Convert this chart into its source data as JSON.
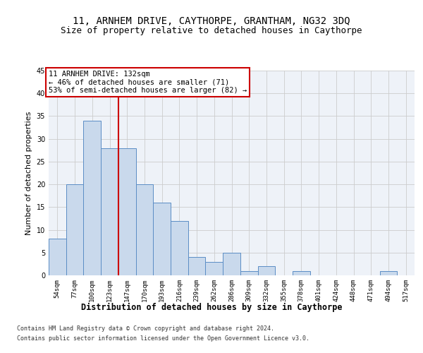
{
  "title": "11, ARNHEM DRIVE, CAYTHORPE, GRANTHAM, NG32 3DQ",
  "subtitle": "Size of property relative to detached houses in Caythorpe",
  "xlabel": "Distribution of detached houses by size in Caythorpe",
  "ylabel": "Number of detached properties",
  "bar_labels": [
    "54sqm",
    "77sqm",
    "100sqm",
    "123sqm",
    "147sqm",
    "170sqm",
    "193sqm",
    "216sqm",
    "239sqm",
    "262sqm",
    "286sqm",
    "309sqm",
    "332sqm",
    "355sqm",
    "378sqm",
    "401sqm",
    "424sqm",
    "448sqm",
    "471sqm",
    "494sqm",
    "517sqm"
  ],
  "bar_values": [
    8,
    20,
    34,
    28,
    28,
    20,
    16,
    12,
    4,
    3,
    5,
    1,
    2,
    0,
    1,
    0,
    0,
    0,
    0,
    1,
    0
  ],
  "bar_color": "#c9d9ec",
  "bar_edge_color": "#5b8dc5",
  "vline_x": 3.5,
  "vline_color": "#cc0000",
  "annotation_text": "11 ARNHEM DRIVE: 132sqm\n← 46% of detached houses are smaller (71)\n53% of semi-detached houses are larger (82) →",
  "annotation_box_color": "#ffffff",
  "annotation_box_edge": "#cc0000",
  "ylim": [
    0,
    45
  ],
  "yticks": [
    0,
    5,
    10,
    15,
    20,
    25,
    30,
    35,
    40,
    45
  ],
  "grid_color": "#cccccc",
  "background_color": "#eef2f8",
  "footer": "Contains HM Land Registry data © Crown copyright and database right 2024.\nContains public sector information licensed under the Open Government Licence v3.0.",
  "title_fontsize": 10,
  "subtitle_fontsize": 9,
  "xlabel_fontsize": 8.5,
  "ylabel_fontsize": 8,
  "tick_fontsize": 6.5,
  "footer_fontsize": 6,
  "ann_fontsize": 7.5
}
